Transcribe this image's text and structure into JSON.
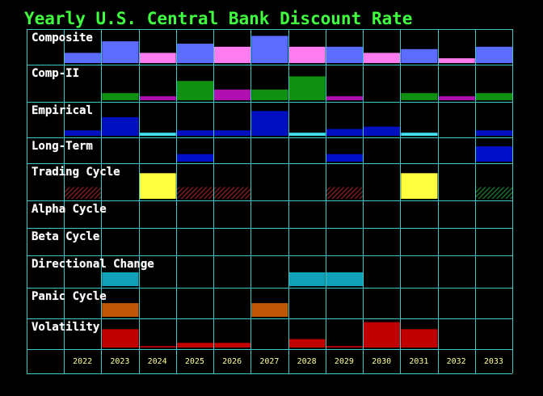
{
  "chart_data": {
    "type": "bar",
    "title": "Yearly U.S. Central Bank Discount Rate",
    "categories": [
      "2022",
      "2023",
      "2024",
      "2025",
      "2026",
      "2027",
      "2028",
      "2029",
      "2030",
      "2031",
      "2032",
      "2033"
    ],
    "panels": [
      {
        "name": "Composite",
        "ylim": [
          0,
          100
        ],
        "values": [
          30,
          64,
          30,
          57,
          48,
          80,
          48,
          48,
          30,
          41,
          14,
          48
        ],
        "colors": [
          "#5c6cff",
          "#5c6cff",
          "#ff7cf0",
          "#5c6cff",
          "#ff7cf0",
          "#5c6cff",
          "#ff7cf0",
          "#5c6cff",
          "#ff7cf0",
          "#5c6cff",
          "#ff7cf0",
          "#5c6cff"
        ]
      },
      {
        "name": "Comp-II",
        "ylim": [
          0,
          100
        ],
        "values": [
          0,
          20,
          11,
          54,
          30,
          30,
          67,
          11,
          0,
          20,
          11,
          20
        ],
        "colors": [
          "#109010",
          "#109010",
          "#b010b0",
          "#109010",
          "#b010b0",
          "#109010",
          "#109010",
          "#b010b0",
          "#109010",
          "#109010",
          "#b010b0",
          "#109010"
        ]
      },
      {
        "name": "Empirical",
        "ylim": [
          0,
          100
        ],
        "values": [
          16,
          55,
          9,
          16,
          16,
          73,
          9,
          20,
          27,
          9,
          0,
          16
        ],
        "colors": [
          "#0010c0",
          "#0010c0",
          "#40e0f0",
          "#0010c0",
          "#0010c0",
          "#0010c0",
          "#40e0f0",
          "#0010c0",
          "#0010c0",
          "#40e0f0",
          "#0010c0",
          "#0010c0"
        ]
      },
      {
        "name": "Long-Term",
        "ylim": [
          0,
          100
        ],
        "values": [
          0,
          0,
          0,
          31,
          0,
          0,
          0,
          31,
          0,
          0,
          0,
          63
        ],
        "color": "#0010c8"
      },
      {
        "name": "Trading Cycle",
        "ylim": [
          0,
          100
        ],
        "values": [
          33,
          0,
          72,
          33,
          33,
          0,
          0,
          33,
          0,
          72,
          0,
          33
        ],
        "colors": [
          "#902020",
          "#902020",
          "#ffff40",
          "#902020",
          "#902020",
          "#902020",
          "#902020",
          "#902020",
          "#902020",
          "#ffff40",
          "#902020",
          "#208030"
        ],
        "hatch": [
          true,
          false,
          false,
          true,
          true,
          false,
          false,
          true,
          false,
          false,
          false,
          true
        ]
      },
      {
        "name": "Alpha Cycle",
        "ylim": [
          0,
          100
        ],
        "values": [
          0,
          0,
          0,
          0,
          0,
          0,
          0,
          0,
          0,
          0,
          0,
          0
        ],
        "color": "#10a0b8"
      },
      {
        "name": "Beta Cycle",
        "ylim": [
          0,
          100
        ],
        "values": [
          0,
          0,
          0,
          0,
          0,
          0,
          0,
          0,
          0,
          0,
          0,
          0
        ],
        "color": "#10a0b8"
      },
      {
        "name": "Directional Change",
        "ylim": [
          0,
          100
        ],
        "values": [
          0,
          45,
          0,
          0,
          0,
          0,
          45,
          45,
          0,
          0,
          0,
          0
        ],
        "color": "#10a0b8"
      },
      {
        "name": "Panic Cycle",
        "ylim": [
          0,
          100
        ],
        "values": [
          0,
          47,
          0,
          0,
          0,
          47,
          0,
          0,
          0,
          0,
          0,
          0
        ],
        "color": "#c05808"
      },
      {
        "name": "Volatility",
        "ylim": [
          0,
          100
        ],
        "values": [
          0,
          63,
          5,
          16,
          16,
          0,
          29,
          5,
          87,
          63,
          0,
          0
        ],
        "color": "#c00000"
      }
    ]
  }
}
